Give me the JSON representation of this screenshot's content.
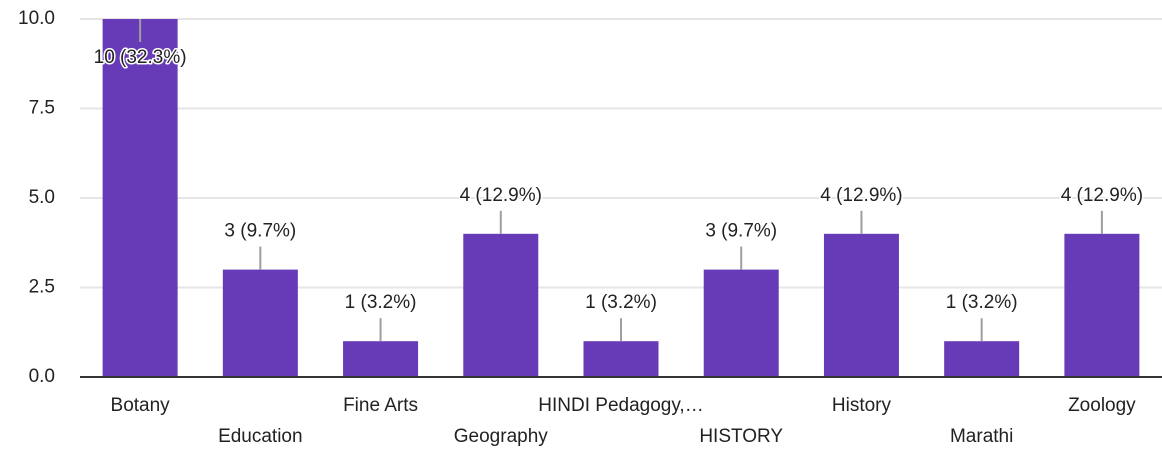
{
  "chart_data": {
    "type": "bar",
    "categories": [
      "Botany",
      "Education",
      "Fine Arts",
      "Geography",
      "HINDI Pedagogy,…",
      "HISTORY",
      "History",
      "Marathi",
      "Zoology"
    ],
    "values": [
      10,
      3,
      1,
      4,
      1,
      3,
      4,
      1,
      4
    ],
    "value_labels": [
      "10 (32.3%)",
      "3 (9.7%)",
      "1 (3.2%)",
      "4 (12.9%)",
      "1 (3.2%)",
      "3 (9.7%)",
      "4 (12.9%)",
      "1 (3.2%)",
      "4 (12.9%)"
    ],
    "color": "#673ab7",
    "ylim": [
      0,
      10
    ],
    "yticks": [
      {
        "value": 0,
        "label": "0.0"
      },
      {
        "value": 2.5,
        "label": "2.5"
      },
      {
        "value": 5,
        "label": "5.0"
      },
      {
        "value": 7.5,
        "label": "7.5"
      },
      {
        "value": 10,
        "label": "10.0"
      }
    ],
    "grid": true
  }
}
